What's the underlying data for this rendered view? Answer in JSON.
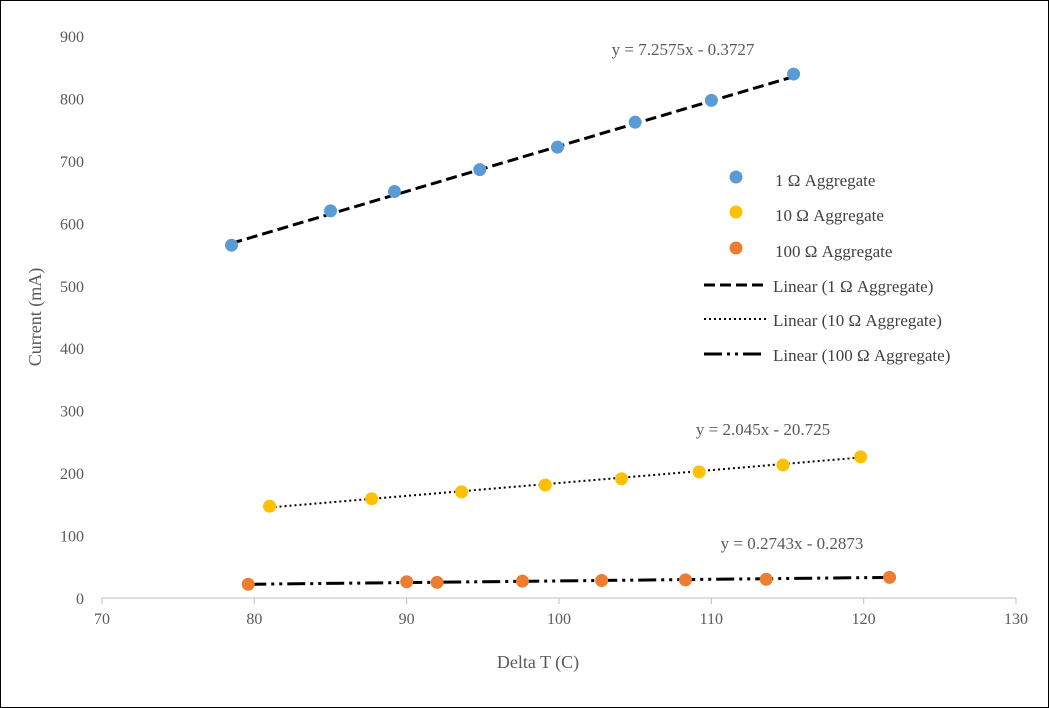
{
  "chart_data": {
    "type": "scatter",
    "xlabel": "Delta T (C)",
    "ylabel": "Current (mA)",
    "xlim": [
      70,
      130
    ],
    "ylim": [
      0,
      900
    ],
    "xticks": [
      "70",
      "80",
      "90",
      "100",
      "110",
      "120",
      "130"
    ],
    "yticks": [
      "0",
      "100",
      "200",
      "300",
      "400",
      "500",
      "600",
      "700",
      "800",
      "900"
    ],
    "grid": false,
    "legend_position": "right",
    "series": [
      {
        "name": "1 Ω Aggregate",
        "color": "#5B9BD5",
        "x": [
          78.5,
          85,
          89.2,
          94.8,
          99.9,
          105,
          110,
          115.4
        ],
        "y": [
          565,
          620,
          651,
          686,
          722,
          762,
          797,
          839
        ],
        "trendline": {
          "name": "Linear (1 Ω Aggregate)",
          "style": "dashed",
          "equation": "y = 7.2575x - 0.3727",
          "x_range": [
            78.5,
            115.4
          ],
          "y_range": [
            568,
            835
          ]
        }
      },
      {
        "name": "10 Ω Aggregate",
        "color": "#FFC000",
        "x": [
          81,
          87.7,
          93.6,
          99.1,
          104.1,
          109.2,
          114.7,
          119.8
        ],
        "y": [
          147,
          159,
          170,
          181,
          191,
          202,
          213,
          226
        ],
        "trendline": {
          "name": "Linear (10 Ω Aggregate)",
          "style": "dotted",
          "equation": "y = 2.045x - 20.725",
          "x_range": [
            81,
            119.8
          ],
          "y_range": [
            145,
            225
          ]
        }
      },
      {
        "name": "100 Ω Aggregate",
        "color": "#ED7D31",
        "x": [
          79.6,
          90,
          92,
          97.6,
          102.8,
          108.3,
          113.6,
          121.7
        ],
        "y": [
          22,
          26,
          25,
          27,
          28,
          29,
          30,
          33
        ],
        "trendline": {
          "name": "Linear (100 Ω Aggregate)",
          "style": "dash-dot-dot",
          "equation": "y = 0.2743x - 0.2873",
          "x_range": [
            79.6,
            121.7
          ],
          "y_range": [
            22,
            33
          ]
        }
      }
    ]
  }
}
